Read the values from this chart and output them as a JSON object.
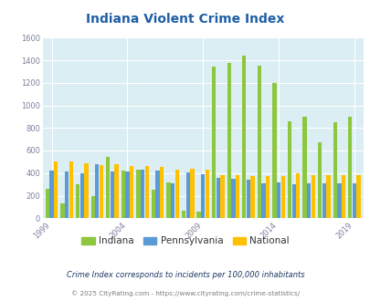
{
  "title": "Indiana Violent Crime Index",
  "years": [
    1999,
    2000,
    2001,
    2002,
    2003,
    2004,
    2005,
    2006,
    2007,
    2008,
    2009,
    2010,
    2011,
    2012,
    2013,
    2014,
    2015,
    2016,
    2017,
    2018,
    2019
  ],
  "indiana": [
    260,
    130,
    300,
    195,
    540,
    420,
    430,
    250,
    315,
    70,
    60,
    1340,
    1375,
    1440,
    1355,
    1200,
    860,
    895,
    670,
    850,
    900
  ],
  "pennsylvania": [
    420,
    415,
    400,
    475,
    415,
    415,
    430,
    425,
    310,
    410,
    390,
    355,
    350,
    340,
    310,
    315,
    305,
    310,
    310,
    310,
    310
  ],
  "national": [
    505,
    505,
    490,
    470,
    475,
    465,
    465,
    455,
    430,
    440,
    430,
    380,
    385,
    370,
    375,
    375,
    395,
    385,
    380,
    385,
    385
  ],
  "indiana_color": "#8dc63f",
  "pennsylvania_color": "#5b9bd5",
  "national_color": "#ffc000",
  "bg_color": "#daeef3",
  "grid_color": "#ffffff",
  "title_color": "#1f5fa6",
  "axis_color": "#7f7f9f",
  "ylim": [
    0,
    1600
  ],
  "yticks": [
    0,
    200,
    400,
    600,
    800,
    1000,
    1200,
    1400,
    1600
  ],
  "xtick_years": [
    1999,
    2004,
    2009,
    2014,
    2019
  ],
  "legend_labels": [
    "Indiana",
    "Pennsylvania",
    "National"
  ],
  "footnote1": "Crime Index corresponds to incidents per 100,000 inhabitants",
  "footnote2": "© 2025 CityRating.com - https://www.cityrating.com/crime-statistics/",
  "footnote1_color": "#1f3864",
  "footnote2_color": "#7f7f7f"
}
